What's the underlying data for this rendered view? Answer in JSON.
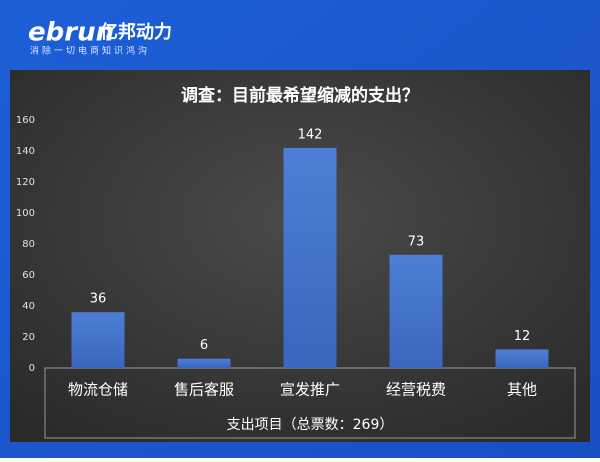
{
  "header": {
    "logo": "ebrun",
    "brand": "亿邦动力",
    "tagline": "消除一切电商知识鸿沟"
  },
  "chart_data": {
    "type": "bar",
    "title": "调查：目前最希望缩减的支出？",
    "categories": [
      "物流仓储",
      "售后客服",
      "宣发推广",
      "经营税费",
      "其他"
    ],
    "values": [
      36,
      6,
      142,
      73,
      12
    ],
    "color": "#4472c4",
    "x_label": "支出项目（总票数：269）",
    "ylim": [
      0,
      160
    ],
    "yticks": [
      0,
      20,
      40,
      60,
      80,
      100,
      120,
      140,
      160
    ],
    "grid": false
  }
}
